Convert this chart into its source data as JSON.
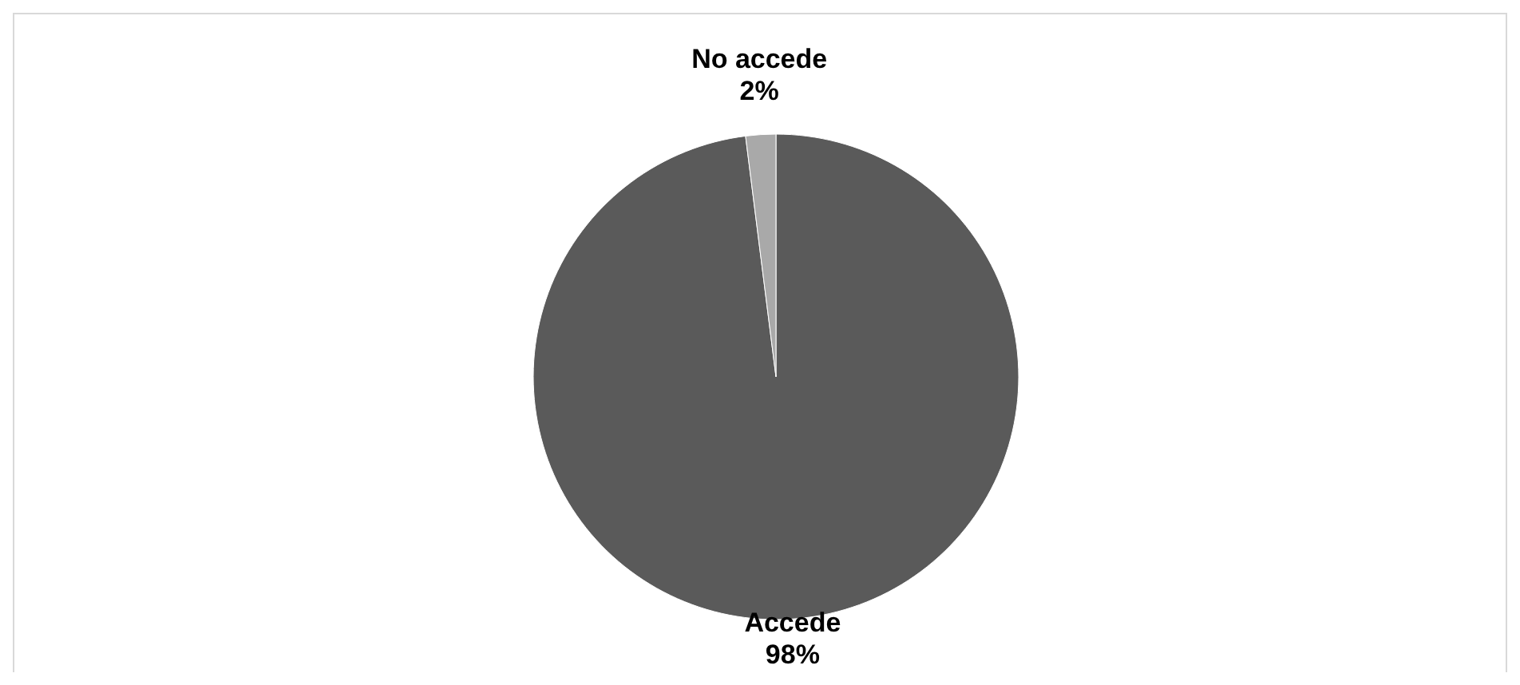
{
  "chart_data": {
    "type": "pie",
    "categories": [
      "Accede",
      "No accede"
    ],
    "values": [
      98,
      2
    ],
    "colors": [
      "#5a5a5a",
      "#a9a9a9"
    ],
    "value_labels": [
      "98%",
      "2%"
    ]
  }
}
